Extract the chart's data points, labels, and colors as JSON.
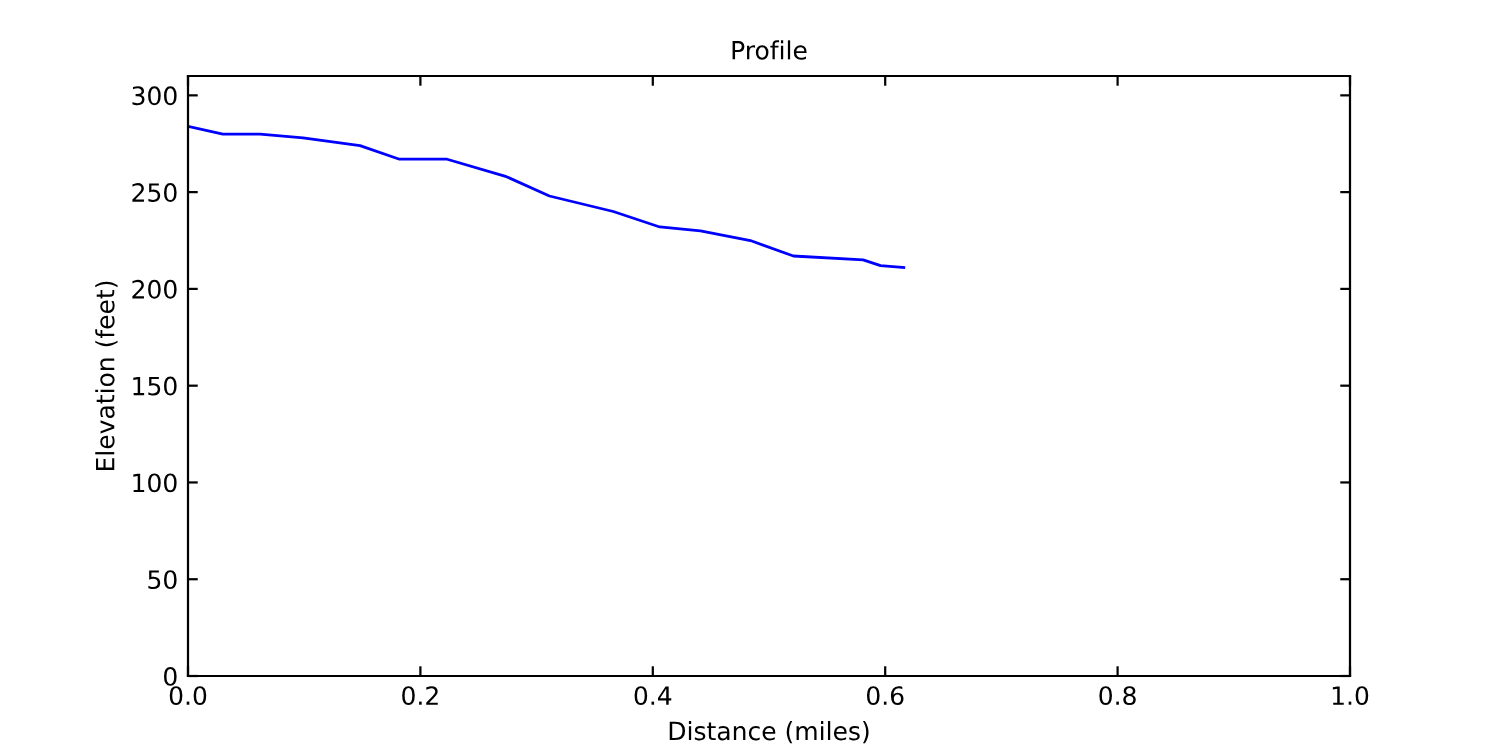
{
  "chart_data": {
    "type": "line",
    "title": "Profile",
    "xlabel": "Distance (miles)",
    "ylabel": "Elevation (feet)",
    "x": [
      0,
      0.03,
      0.062,
      0.099,
      0.148,
      0.182,
      0.223,
      0.274,
      0.311,
      0.366,
      0.406,
      0.441,
      0.484,
      0.521,
      0.581,
      0.596,
      0.616
    ],
    "series": [
      {
        "color": "#0000ff",
        "values": [
          284,
          280,
          280,
          278,
          274,
          267,
          267,
          258,
          248,
          240,
          232,
          230,
          225,
          217,
          215,
          212,
          211
        ]
      }
    ],
    "xlim": [
      0,
      1
    ],
    "xticks": [
      {
        "value": 0,
        "label": "0.0"
      },
      0.2,
      0.4,
      0.6,
      0.8,
      {
        "value": 1,
        "label": "1.0"
      }
    ],
    "ylim": [
      0,
      310
    ],
    "yticks": [
      0,
      50,
      100,
      150,
      200,
      250,
      300
    ],
    "grid": false,
    "legend": false
  }
}
